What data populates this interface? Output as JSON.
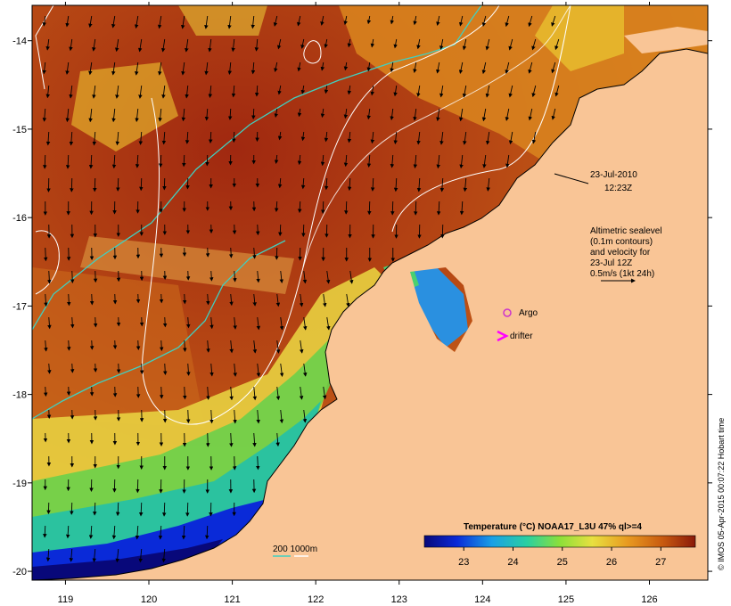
{
  "map": {
    "lon_ticks": [
      "119",
      "120",
      "121",
      "122",
      "123",
      "124",
      "125",
      "126"
    ],
    "lat_ticks": [
      "-14",
      "-15",
      "-16",
      "-17",
      "-18",
      "-19",
      "-20"
    ],
    "lon_range": [
      118.6,
      126.7
    ],
    "lat_range": [
      -20.1,
      -13.6
    ]
  },
  "annotations": {
    "timestamp_date": "23-Jul-2010",
    "timestamp_time": "12:23Z",
    "altimetry_lines": [
      "Altimetric sealevel",
      "(0.1m contours)",
      "and velocity for",
      "23-Jul 12Z",
      "0.5m/s (1kt 24h)"
    ],
    "argo_label": "Argo",
    "drifter_label": "drifter",
    "depth_label": "200  1000m"
  },
  "legend": {
    "title": "Temperature (°C) NOAA17_L3U 47% ql>=4",
    "ticks": [
      "23",
      "24",
      "25",
      "26",
      "27"
    ],
    "tick_values": [
      23,
      24,
      25,
      26,
      27
    ],
    "range": [
      22.2,
      27.7
    ]
  },
  "credit": "© IMOS 05-Apr-2015 00:07:22 Hobart time",
  "colors": {
    "land": "#f9c596",
    "argo": "#cc33cc",
    "drifter": "#ff00ff",
    "isobath_200": "#40d0c0",
    "isobath_1000": "#ffffff"
  }
}
